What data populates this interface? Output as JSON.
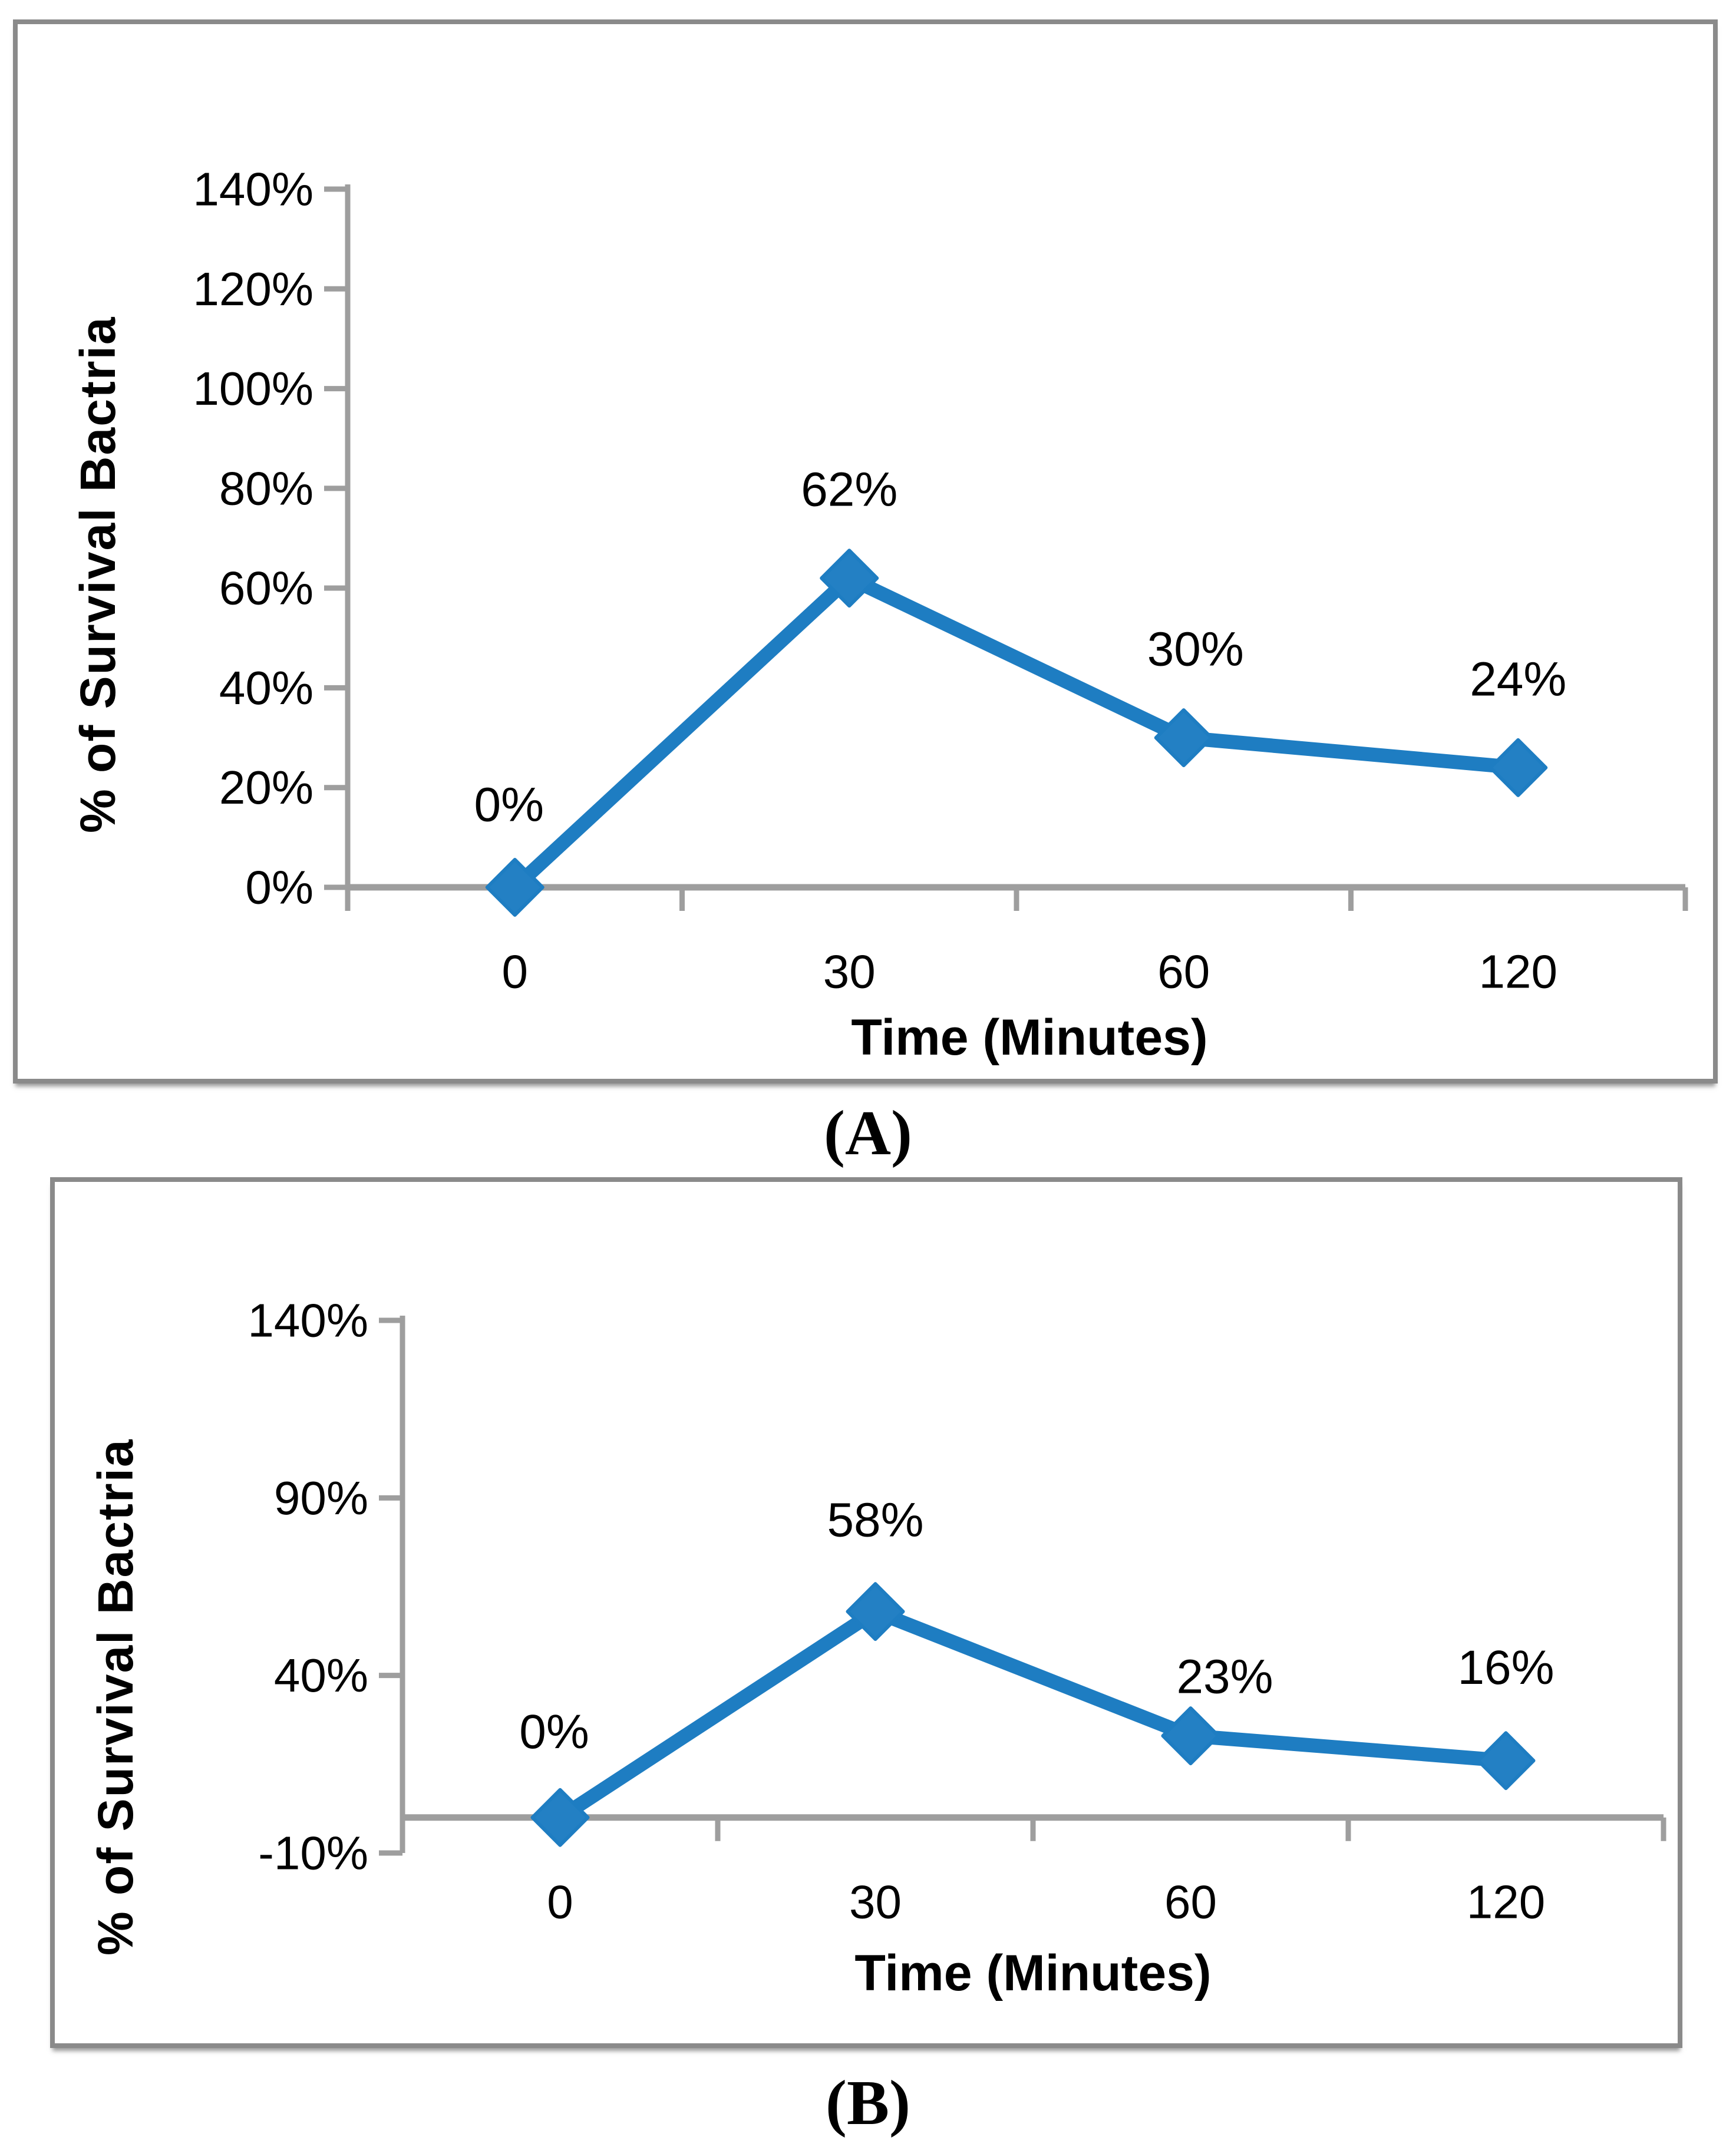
{
  "page": {
    "background": "#ffffff"
  },
  "colors": {
    "series_blue": "#1E7DC2",
    "marker_blue": "#2380C4",
    "axis_gray": "#9E9E9E",
    "border_gray": "#8A8A8A",
    "text_black": "#000000"
  },
  "chart_data": [
    {
      "id": "A",
      "type": "line",
      "caption": "(A)",
      "xlabel": "Time (Minutes)",
      "ylabel": "% of Survival Bactria",
      "categories": [
        "0",
        "30",
        "60",
        "120"
      ],
      "values": [
        0,
        62,
        30,
        24
      ],
      "data_labels": [
        "0%",
        "62%",
        "30%",
        "24%"
      ],
      "y_ticks": [
        "0%",
        "20%",
        "40%",
        "60%",
        "80%",
        "100%",
        "120%",
        "140%"
      ],
      "y_tick_values": [
        0,
        20,
        40,
        60,
        80,
        100,
        120,
        140
      ],
      "ylim": [
        0,
        140
      ],
      "x_axis_cross": 0,
      "grid": "off",
      "legend": "none",
      "marker": "diamond"
    },
    {
      "id": "B",
      "type": "line",
      "caption": "(B)",
      "xlabel": "Time (Minutes)",
      "ylabel": "% of Survival Bactria",
      "categories": [
        "0",
        "30",
        "60",
        "120"
      ],
      "values": [
        0,
        58,
        23,
        16
      ],
      "data_labels": [
        "0%",
        "58%",
        "23%",
        "16%"
      ],
      "y_ticks": [
        "-10%",
        "40%",
        "90%",
        "140%"
      ],
      "y_tick_values": [
        -10,
        40,
        90,
        140
      ],
      "ylim": [
        -10,
        140
      ],
      "x_axis_cross": 0,
      "grid": "off",
      "legend": "none",
      "marker": "diamond"
    }
  ]
}
